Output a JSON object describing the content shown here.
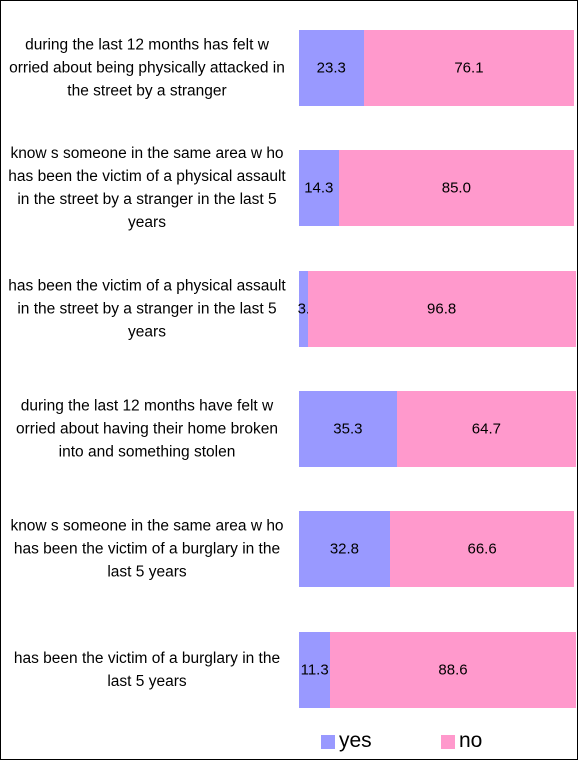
{
  "chart_data": {
    "type": "stacked-bar-horizontal",
    "categories": [
      "during the last 12 months has felt w orried about being physically attacked in the street by a stranger",
      "know s someone in the same area w ho has been the victim of a physical assault in the street by a stranger in the last 5 years",
      "has  been the victim of a physical assault in the street by a stranger in the last 5 years",
      "during the last 12 months have felt w orried about having their home broken into and something stolen",
      "know s someone in the same area w ho has been the victim of a burglary in the last 5 years",
      "has been the victim of a burglary in the last 5 years"
    ],
    "series": [
      {
        "name": "yes",
        "color": "#9999ff",
        "values": [
          23.3,
          14.3,
          3.1,
          35.3,
          32.8,
          11.3
        ],
        "value_labels": [
          "23.3",
          "14.3",
          "3.1",
          "35.3",
          "32.8",
          "11.3"
        ]
      },
      {
        "name": "no",
        "color": "#ff99cc",
        "values": [
          76.1,
          85.0,
          96.8,
          64.7,
          66.6,
          88.6
        ],
        "value_labels": [
          "76.1",
          "85.0",
          "96.8",
          "64.7",
          "66.6",
          "88.6"
        ]
      }
    ],
    "xlim": [
      0,
      100
    ]
  }
}
